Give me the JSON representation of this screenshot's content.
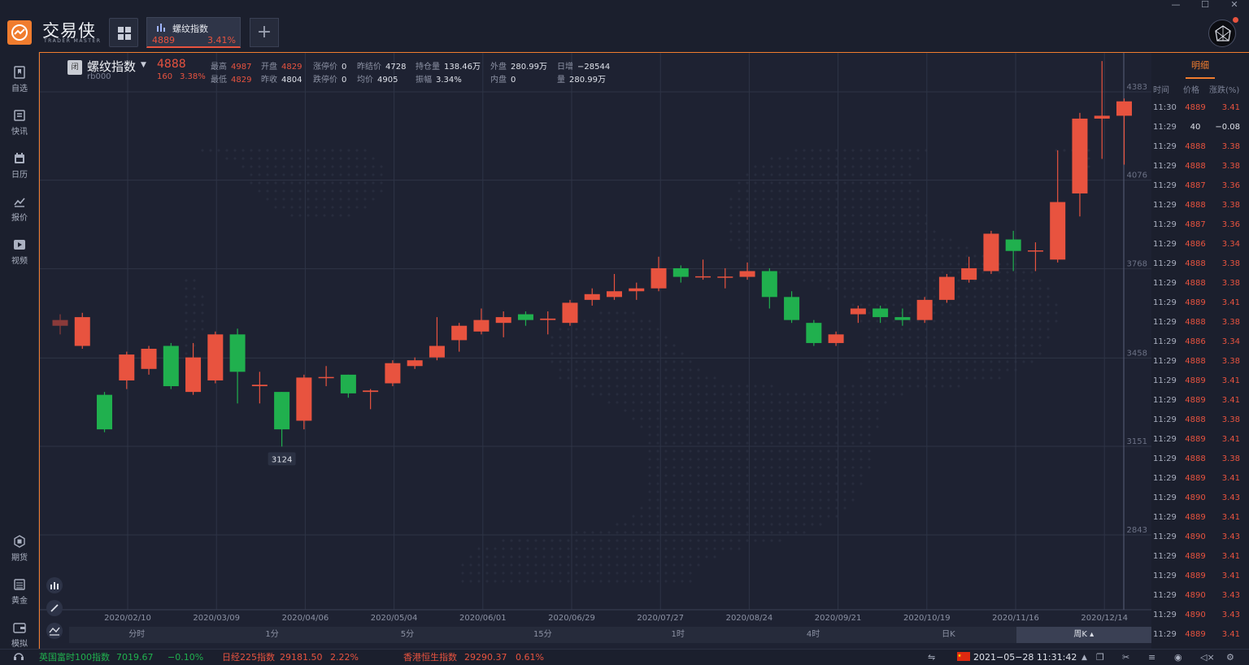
{
  "app": {
    "logo_text": "交易侠",
    "logo_sub": "TRADER MASTER"
  },
  "tabs": [
    {
      "name": "螺纹指数",
      "price": "4889",
      "pct": "3.41%"
    }
  ],
  "sidebar": {
    "items": [
      {
        "label": "自选",
        "icon": "bookmark-icon"
      },
      {
        "label": "快讯",
        "icon": "news-icon"
      },
      {
        "label": "日历",
        "icon": "calendar-icon"
      },
      {
        "label": "报价",
        "icon": "chart-line-icon"
      },
      {
        "label": "视频",
        "icon": "video-icon"
      },
      {
        "label": "期货",
        "icon": "futures-icon"
      },
      {
        "label": "黄金",
        "icon": "gold-icon"
      },
      {
        "label": "模拟",
        "icon": "wallet-icon"
      }
    ]
  },
  "quote": {
    "badge": "闭",
    "name": "螺纹指数",
    "code": "rb000",
    "price": "4888",
    "change": "160",
    "change_pct": "3.38%",
    "fields_row1": [
      {
        "k": "最高",
        "v": "4987",
        "red": true
      },
      {
        "k": "开盘",
        "v": "4829",
        "red": true
      },
      {
        "k": "涨停价",
        "v": "0",
        "red": false
      },
      {
        "k": "昨结价",
        "v": "4728",
        "red": false
      },
      {
        "k": "持仓量",
        "v": "138.46万",
        "red": false
      },
      {
        "k": "外盘",
        "v": "280.99万",
        "red": false
      },
      {
        "k": "日增",
        "v": "−28544",
        "red": false
      }
    ],
    "fields_row2": [
      {
        "k": "最低",
        "v": "4829",
        "red": true
      },
      {
        "k": "昨收",
        "v": "4804",
        "red": false
      },
      {
        "k": "跌停价",
        "v": "0",
        "red": false
      },
      {
        "k": "均价",
        "v": "4905",
        "red": false
      },
      {
        "k": "振幅",
        "v": "3.34%",
        "red": false
      },
      {
        "k": "内盘",
        "v": "0",
        "red": false
      },
      {
        "k": "量",
        "v": "280.99万",
        "red": false
      }
    ]
  },
  "chart_data": {
    "type": "candlestick",
    "y_ticks": [
      4383,
      4076,
      3768,
      3458,
      3151,
      2843
    ],
    "x_ticks": [
      "2020/02/10",
      "2020/03/09",
      "2020/04/06",
      "2020/05/04",
      "2020/06/01",
      "2020/06/29",
      "2020/07/27",
      "2020/08/24",
      "2020/09/21",
      "2020/10/19",
      "2020/11/16",
      "2020/12/14"
    ],
    "min_label": "3124",
    "ylim": [
      2540,
      4687
    ],
    "candles": [
      {
        "o": 3590,
        "c": 3570,
        "h": 3610,
        "l": 3540
      },
      {
        "o": 3500,
        "c": 3600,
        "h": 3615,
        "l": 3490
      },
      {
        "o": 3330,
        "c": 3210,
        "h": 3340,
        "l": 3200
      },
      {
        "o": 3380,
        "c": 3470,
        "h": 3480,
        "l": 3350
      },
      {
        "o": 3420,
        "c": 3490,
        "h": 3500,
        "l": 3400
      },
      {
        "o": 3500,
        "c": 3360,
        "h": 3510,
        "l": 3350
      },
      {
        "o": 3340,
        "c": 3460,
        "h": 3510,
        "l": 3330
      },
      {
        "o": 3380,
        "c": 3540,
        "h": 3550,
        "l": 3370
      },
      {
        "o": 3540,
        "c": 3410,
        "h": 3560,
        "l": 3300
      },
      {
        "o": 3360,
        "c": 3365,
        "h": 3410,
        "l": 3300
      },
      {
        "o": 3340,
        "c": 3210,
        "h": 3340,
        "l": 3150
      },
      {
        "o": 3240,
        "c": 3390,
        "h": 3400,
        "l": 3210
      },
      {
        "o": 3390,
        "c": 3392,
        "h": 3430,
        "l": 3360
      },
      {
        "o": 3400,
        "c": 3335,
        "h": 3400,
        "l": 3320
      },
      {
        "o": 3340,
        "c": 3345,
        "h": 3350,
        "l": 3280
      },
      {
        "o": 3370,
        "c": 3440,
        "h": 3450,
        "l": 3360
      },
      {
        "o": 3430,
        "c": 3450,
        "h": 3460,
        "l": 3420
      },
      {
        "o": 3460,
        "c": 3500,
        "h": 3600,
        "l": 3450
      },
      {
        "o": 3520,
        "c": 3570,
        "h": 3580,
        "l": 3480
      },
      {
        "o": 3550,
        "c": 3590,
        "h": 3630,
        "l": 3540
      },
      {
        "o": 3580,
        "c": 3600,
        "h": 3620,
        "l": 3530
      },
      {
        "o": 3610,
        "c": 3590,
        "h": 3620,
        "l": 3570
      },
      {
        "o": 3590,
        "c": 3595,
        "h": 3620,
        "l": 3540
      },
      {
        "o": 3580,
        "c": 3650,
        "h": 3660,
        "l": 3570
      },
      {
        "o": 3660,
        "c": 3680,
        "h": 3700,
        "l": 3640
      },
      {
        "o": 3670,
        "c": 3690,
        "h": 3750,
        "l": 3660
      },
      {
        "o": 3690,
        "c": 3700,
        "h": 3720,
        "l": 3660
      },
      {
        "o": 3700,
        "c": 3770,
        "h": 3810,
        "l": 3690
      },
      {
        "o": 3770,
        "c": 3740,
        "h": 3780,
        "l": 3720
      },
      {
        "o": 3740,
        "c": 3742,
        "h": 3800,
        "l": 3730
      },
      {
        "o": 3740,
        "c": 3741,
        "h": 3770,
        "l": 3700
      },
      {
        "o": 3740,
        "c": 3760,
        "h": 3790,
        "l": 3730
      },
      {
        "o": 3760,
        "c": 3670,
        "h": 3770,
        "l": 3630
      },
      {
        "o": 3670,
        "c": 3590,
        "h": 3690,
        "l": 3580
      },
      {
        "o": 3580,
        "c": 3510,
        "h": 3590,
        "l": 3500
      },
      {
        "o": 3510,
        "c": 3540,
        "h": 3550,
        "l": 3500
      },
      {
        "o": 3610,
        "c": 3630,
        "h": 3640,
        "l": 3580
      },
      {
        "o": 3630,
        "c": 3600,
        "h": 3640,
        "l": 3580
      },
      {
        "o": 3600,
        "c": 3590,
        "h": 3630,
        "l": 3570
      },
      {
        "o": 3590,
        "c": 3660,
        "h": 3670,
        "l": 3580
      },
      {
        "o": 3660,
        "c": 3740,
        "h": 3750,
        "l": 3650
      },
      {
        "o": 3730,
        "c": 3770,
        "h": 3810,
        "l": 3720
      },
      {
        "o": 3760,
        "c": 3890,
        "h": 3900,
        "l": 3750
      },
      {
        "o": 3870,
        "c": 3830,
        "h": 3900,
        "l": 3760
      },
      {
        "o": 3830,
        "c": 3832,
        "h": 3860,
        "l": 3760
      },
      {
        "o": 3800,
        "c": 4000,
        "h": 4180,
        "l": 3790
      },
      {
        "o": 4030,
        "c": 4290,
        "h": 4310,
        "l": 3950
      },
      {
        "o": 4290,
        "c": 4300,
        "h": 4490,
        "l": 4150
      },
      {
        "o": 4300,
        "c": 4350,
        "h": 4360,
        "l": 4130
      }
    ]
  },
  "toolbar_bottom": {
    "timeframes": [
      "分时",
      "1分",
      "5分",
      "15分",
      "1时",
      "4时",
      "日K",
      "周K"
    ],
    "active": "周K"
  },
  "detail_panel": {
    "title": "明细",
    "headers": [
      "时间",
      "价格",
      "涨跌(%)"
    ],
    "rows": [
      {
        "t": "11:30",
        "p": "4889",
        "c": "3.41",
        "pc": "red"
      },
      {
        "t": "11:29",
        "p": "40",
        "c": "−0.08",
        "pc": "white"
      },
      {
        "t": "11:29",
        "p": "4888",
        "c": "3.38",
        "pc": "red"
      },
      {
        "t": "11:29",
        "p": "4888",
        "c": "3.38",
        "pc": "red"
      },
      {
        "t": "11:29",
        "p": "4887",
        "c": "3.36",
        "pc": "red"
      },
      {
        "t": "11:29",
        "p": "4888",
        "c": "3.38",
        "pc": "red"
      },
      {
        "t": "11:29",
        "p": "4887",
        "c": "3.36",
        "pc": "red"
      },
      {
        "t": "11:29",
        "p": "4886",
        "c": "3.34",
        "pc": "red"
      },
      {
        "t": "11:29",
        "p": "4888",
        "c": "3.38",
        "pc": "red"
      },
      {
        "t": "11:29",
        "p": "4888",
        "c": "3.38",
        "pc": "red"
      },
      {
        "t": "11:29",
        "p": "4889",
        "c": "3.41",
        "pc": "red"
      },
      {
        "t": "11:29",
        "p": "4888",
        "c": "3.38",
        "pc": "red"
      },
      {
        "t": "11:29",
        "p": "4886",
        "c": "3.34",
        "pc": "red"
      },
      {
        "t": "11:29",
        "p": "4888",
        "c": "3.38",
        "pc": "red"
      },
      {
        "t": "11:29",
        "p": "4889",
        "c": "3.41",
        "pc": "red"
      },
      {
        "t": "11:29",
        "p": "4889",
        "c": "3.41",
        "pc": "red"
      },
      {
        "t": "11:29",
        "p": "4888",
        "c": "3.38",
        "pc": "red"
      },
      {
        "t": "11:29",
        "p": "4889",
        "c": "3.41",
        "pc": "red"
      },
      {
        "t": "11:29",
        "p": "4888",
        "c": "3.38",
        "pc": "red"
      },
      {
        "t": "11:29",
        "p": "4889",
        "c": "3.41",
        "pc": "red"
      },
      {
        "t": "11:29",
        "p": "4890",
        "c": "3.43",
        "pc": "red"
      },
      {
        "t": "11:29",
        "p": "4889",
        "c": "3.41",
        "pc": "red"
      },
      {
        "t": "11:29",
        "p": "4890",
        "c": "3.43",
        "pc": "red"
      },
      {
        "t": "11:29",
        "p": "4889",
        "c": "3.41",
        "pc": "red"
      },
      {
        "t": "11:29",
        "p": "4889",
        "c": "3.41",
        "pc": "red"
      },
      {
        "t": "11:29",
        "p": "4890",
        "c": "3.43",
        "pc": "red"
      },
      {
        "t": "11:29",
        "p": "4890",
        "c": "3.43",
        "pc": "red"
      },
      {
        "t": "11:29",
        "p": "4889",
        "c": "3.41",
        "pc": "red"
      }
    ]
  },
  "status_bar": {
    "tickers": [
      {
        "name": "英国富时100指数",
        "value": "7019.67",
        "pct": "−0.10%",
        "dir": "down"
      },
      {
        "name": "日经225指数",
        "value": "29181.50",
        "pct": "2.22%",
        "dir": "up"
      },
      {
        "name": "香港恒生指数",
        "value": "29290.37",
        "pct": "0.61%",
        "dir": "up"
      }
    ],
    "datetime": "2021−05−28 11:31:42"
  },
  "colors": {
    "up": "#e8533f",
    "down": "#20b04e",
    "accent": "#f07c2e",
    "bg": "#1e2232"
  }
}
